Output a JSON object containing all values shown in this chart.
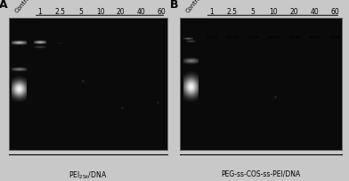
{
  "fig_background": "#c8c8c8",
  "panel_A": {
    "label": "A",
    "xlabel": "PEI$_{25k}$/DNA",
    "lanes": [
      "Control",
      "1",
      "2.5",
      "5",
      "10",
      "20",
      "40",
      "60"
    ]
  },
  "panel_B": {
    "label": "B",
    "xlabel": "PEG-ss-COS-ss-PEI/DNA",
    "lanes": [
      "Control",
      "1",
      "2.5",
      "5",
      "10",
      "20",
      "40",
      "60"
    ]
  },
  "lane_label_fontsize": 5.5,
  "control_label_fontsize": 5.0,
  "panel_label_fontsize": 9,
  "xlabel_fontsize": 5.5
}
